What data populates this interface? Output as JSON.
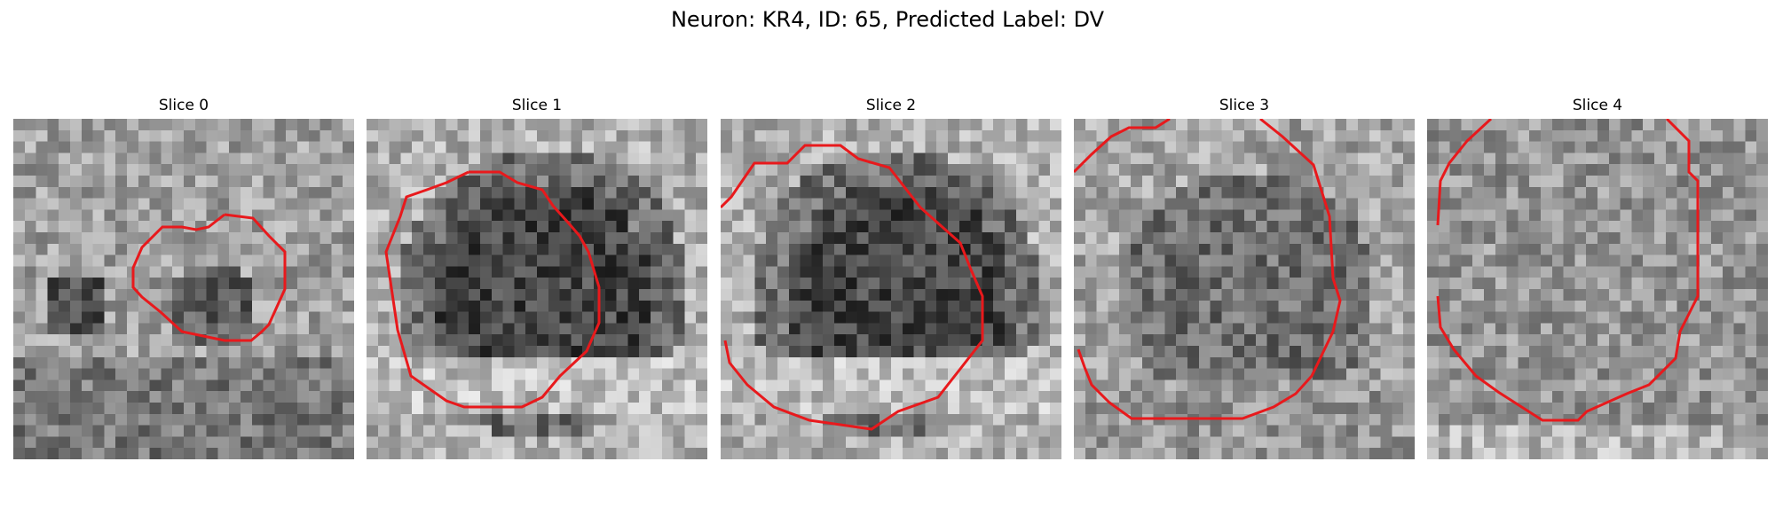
{
  "figure": {
    "title": "Neuron: KR4, ID: 65, Predicted Label: DV",
    "contour_color": "#e8191c"
  },
  "slices": [
    {
      "title": "Slice 0",
      "seed": 11,
      "dark_region": "center-left"
    },
    {
      "title": "Slice 1",
      "seed": 23,
      "dark_region": "center"
    },
    {
      "title": "Slice 2",
      "seed": 37,
      "dark_region": "center"
    },
    {
      "title": "Slice 3",
      "seed": 41,
      "dark_region": "center-light"
    },
    {
      "title": "Slice 4",
      "seed": 59,
      "dark_region": "none"
    }
  ]
}
